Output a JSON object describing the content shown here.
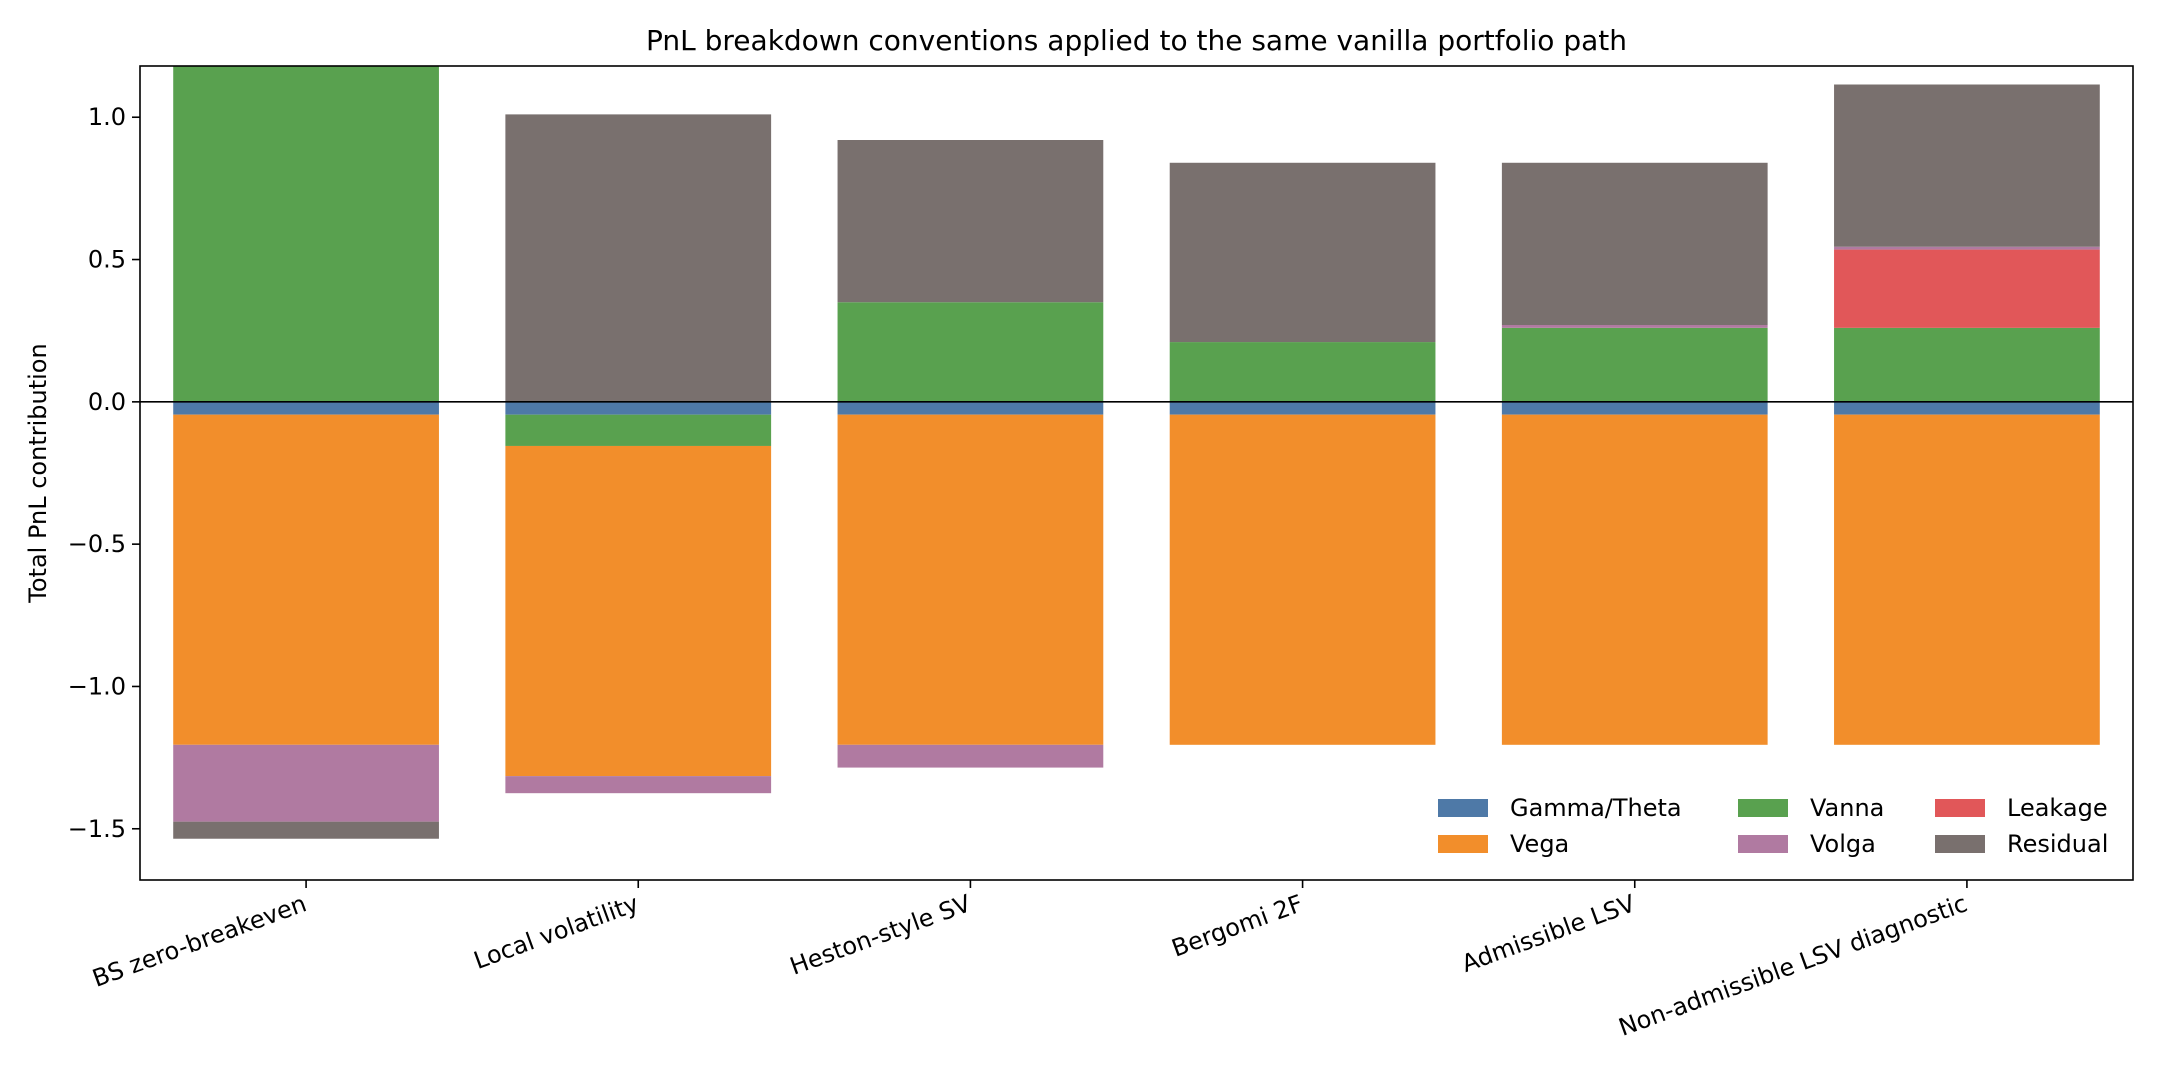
{
  "chart_data": {
    "type": "bar",
    "stacked": true,
    "title": "PnL breakdown conventions applied to the same vanilla portfolio path",
    "xlabel": "",
    "ylabel": "Total PnL contribution",
    "ylim": [
      -1.68,
      1.18
    ],
    "yticks": [
      -1.5,
      -1.0,
      -0.5,
      0.0,
      0.5,
      1.0
    ],
    "ytick_labels": [
      "−1.5",
      "−1.0",
      "−0.5",
      "0.0",
      "0.5",
      "1.0"
    ],
    "categories": [
      "BS zero-breakeven",
      "Local volatility",
      "Heston-style SV",
      "Bergomi 2F",
      "Admissible LSV",
      "Non-admissible LSV diagnostic"
    ],
    "series": [
      {
        "name": "Gamma/Theta",
        "color": "#4e79a7",
        "values": [
          -0.045,
          -0.045,
          -0.045,
          -0.045,
          -0.045,
          -0.045
        ]
      },
      {
        "name": "Vanna",
        "color": "#59a14f",
        "values": [
          1.22,
          -0.11,
          0.35,
          0.21,
          0.26,
          0.26
        ]
      },
      {
        "name": "Leakage",
        "color": "#e15759",
        "values": [
          0,
          0,
          0,
          0,
          0,
          0.275
        ]
      },
      {
        "name": "Vega",
        "color": "#f28e2b",
        "values": [
          -1.16,
          -1.16,
          -1.16,
          -1.16,
          -1.16,
          -1.16
        ]
      },
      {
        "name": "Volga",
        "color": "#b07aa1",
        "values": [
          -0.27,
          -0.06,
          -0.08,
          0,
          0.01,
          0.01
        ]
      },
      {
        "name": "Residual",
        "color": "#79706e",
        "values": [
          -0.06,
          1.01,
          0.57,
          0.63,
          0.57,
          0.57
        ]
      }
    ],
    "legend": {
      "placement": "lower-right",
      "columns": 3,
      "order": [
        "Gamma/Theta",
        "Vega",
        "Vanna",
        "Volga",
        "Leakage",
        "Residual"
      ]
    },
    "zero_line": true,
    "grid": false
  }
}
